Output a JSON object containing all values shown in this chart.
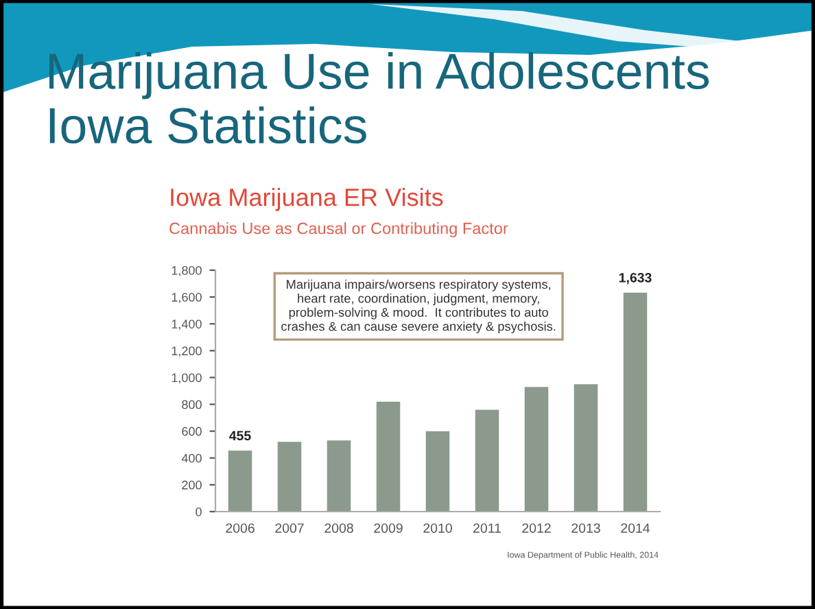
{
  "chart_data": {
    "type": "bar",
    "title": "Iowa Marijuana ER Visits",
    "subtitle": "Cannabis Use as Causal or Contributing Factor",
    "annotations": [
      "Marijuana Use in Adolescents\nIowa Statistics",
      "Marijuana impairs/worsens respiratory systems,\nheart rate, coordination, judgment, memory,\nproblem-solving & mood.  It contributes to auto\ncrashes & can cause severe anxiety & psychosis.",
      "Iowa Department of Public Health, 2014"
    ],
    "categories": [
      "2006",
      "2007",
      "2008",
      "2009",
      "2010",
      "2011",
      "2012",
      "2013",
      "2014"
    ],
    "values": [
      455,
      520,
      530,
      820,
      600,
      760,
      930,
      950,
      1633
    ],
    "value_labels": [
      "455",
      null,
      null,
      null,
      null,
      null,
      null,
      null,
      "1,633"
    ],
    "color": "#8c9a8e",
    "ylim": [
      0,
      1800
    ],
    "yticks": [
      0,
      200,
      400,
      600,
      800,
      {
        "value": 1000,
        "label": "1,000"
      },
      {
        "value": 1200,
        "label": "1,200"
      },
      {
        "value": 1400,
        "label": "1,400"
      },
      {
        "value": 1600,
        "label": "1,600"
      },
      {
        "value": 1800,
        "label": "1,800"
      }
    ]
  }
}
